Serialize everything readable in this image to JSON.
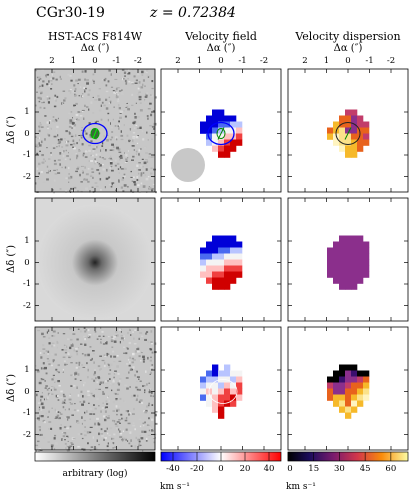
{
  "header": {
    "galaxy": "CGr30-19",
    "redshift": "z = 0.72384"
  },
  "columns": [
    {
      "title": "HST-ACS F814W",
      "xlabel": "Δα (″)"
    },
    {
      "title": "Velocity field",
      "xlabel": "Δα (″)"
    },
    {
      "title": "Velocity dispersion",
      "xlabel": "Δα (″)"
    }
  ],
  "ylabel": "Δδ (″)",
  "x_ticks": [
    "2",
    "1",
    "0",
    "-1",
    "-2"
  ],
  "y_ticks": [
    "1",
    "0",
    "-1",
    "-2"
  ],
  "colorbars": [
    {
      "name": "image",
      "label": "arbitrary (log)",
      "ticks": []
    },
    {
      "name": "velocity",
      "label": "km s⁻¹",
      "ticks": [
        "-40",
        "-20",
        "0",
        "20",
        "40"
      ]
    },
    {
      "name": "dispersion",
      "label": "km s⁻¹",
      "ticks": [
        "0",
        "15",
        "30",
        "45",
        "60"
      ]
    }
  ],
  "colors": {
    "velocity_negative": "#0000ff",
    "velocity_positive": "#ff0000",
    "dispersion_mid": "#8b2f8c",
    "contour": "#0000ff"
  }
}
